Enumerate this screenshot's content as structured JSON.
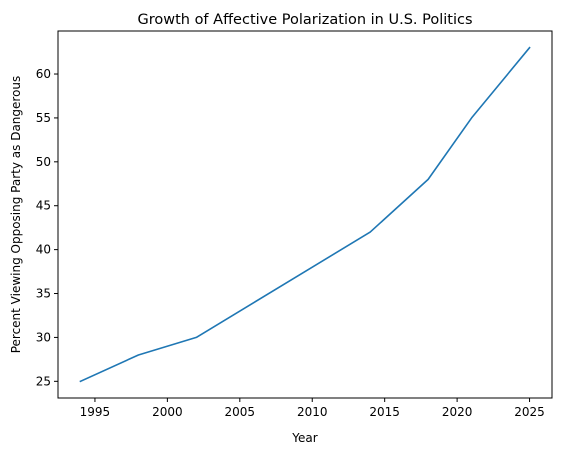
{
  "chart_data": {
    "type": "line",
    "title": "Growth of Affective Polarization in U.S. Politics",
    "xlabel": "Year",
    "ylabel": "Percent Viewing Opposing Party as Dangerous",
    "xlim": [
      1992.45,
      2026.55
    ],
    "ylim": [
      23.1,
      64.9
    ],
    "xticks": [
      1995,
      2000,
      2005,
      2010,
      2015,
      2020,
      2025
    ],
    "yticks": [
      25,
      30,
      35,
      40,
      45,
      50,
      55,
      60
    ],
    "grid": false,
    "legend": "none",
    "series": [
      {
        "color": "#1f77b4",
        "x": [
          1994,
          1998,
          2002,
          2006,
          2010,
          2014,
          2018,
          2021,
          2025
        ],
        "y": [
          25,
          28,
          30,
          34,
          38,
          42,
          48,
          55,
          63
        ]
      }
    ]
  }
}
